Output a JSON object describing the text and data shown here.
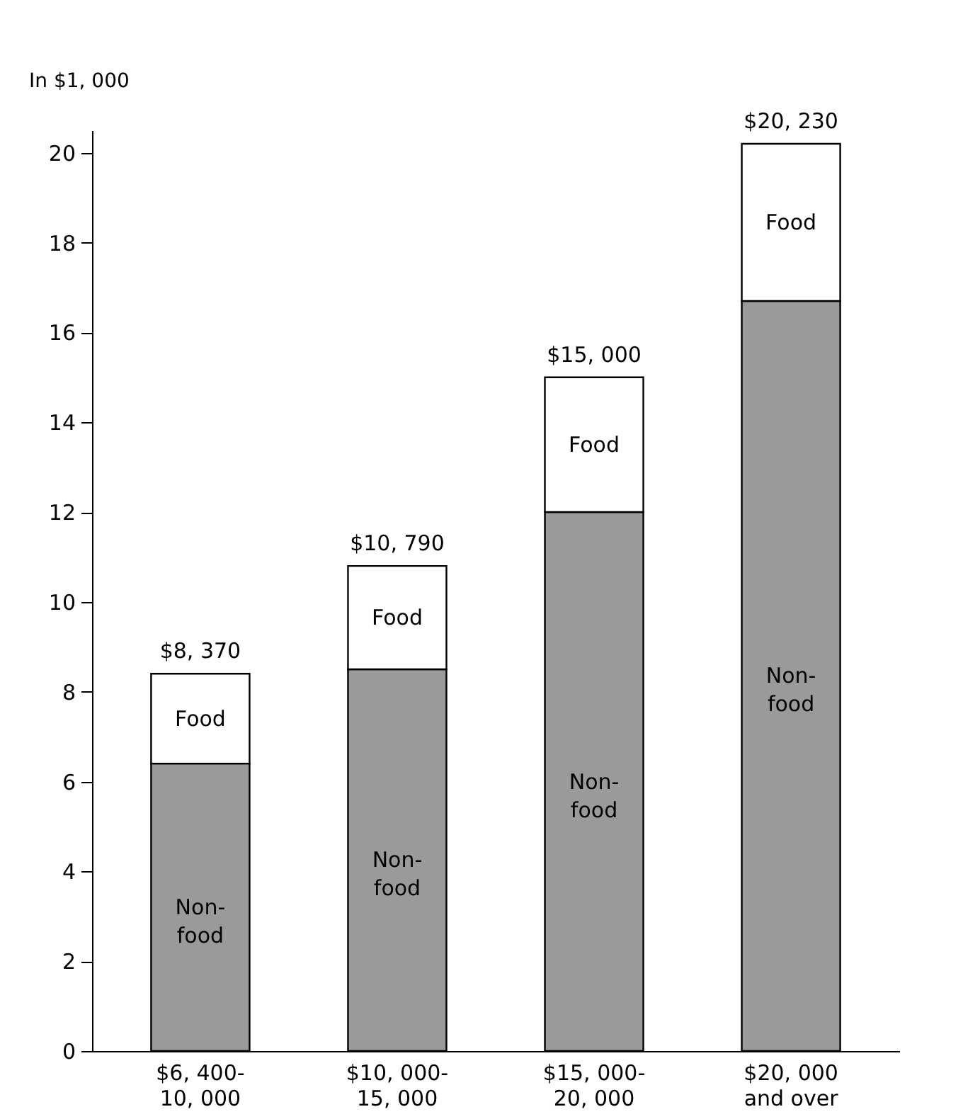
{
  "chart_data": {
    "type": "bar",
    "stacked": true,
    "ylabel": "In $1, 000",
    "categories": [
      "$6, 400-\n10, 000",
      "$10, 000-\n15, 000",
      "$15, 000-\n20, 000",
      "$20, 000\nand over"
    ],
    "series": [
      {
        "name": "Non-\nfood",
        "color": "#9a9a9a",
        "values": [
          6.4,
          8.5,
          12.0,
          16.7
        ]
      },
      {
        "name": "Food",
        "color": "#ffffff",
        "values": [
          2.0,
          2.3,
          3.0,
          3.5
        ]
      }
    ],
    "totals": [
      "$8, 370",
      "$10, 790",
      "$15, 000",
      "$20, 230"
    ],
    "ylim": [
      0,
      20.5
    ],
    "yticks": [
      0,
      2,
      4,
      6,
      8,
      10,
      12,
      14,
      16,
      18,
      20
    ],
    "grid": false,
    "legend": false
  }
}
